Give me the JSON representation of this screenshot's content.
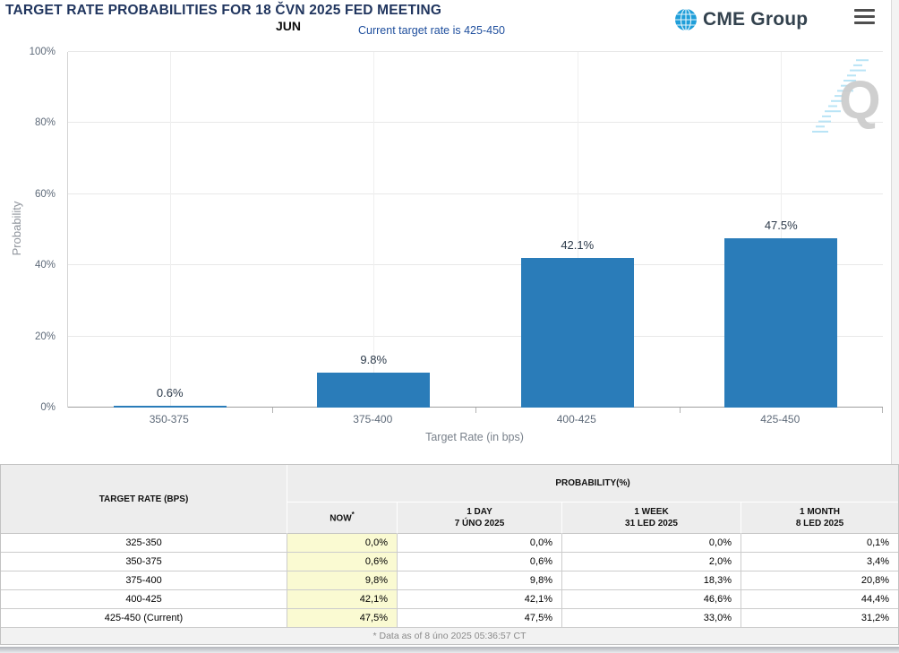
{
  "header": {
    "title": "TARGET RATE PROBABILITIES FOR 18 ČVN 2025 FED MEETING",
    "month_label": "JUN",
    "subtitle": "Current target rate is 425-450",
    "logo_text": "CME Group",
    "watermark_letter": "Q"
  },
  "chart_data": {
    "type": "bar",
    "title": "TARGET RATE PROBABILITIES FOR 18 ČVN 2025 FED MEETING",
    "subtitle": "Current target rate is 425-450",
    "categories": [
      "350-375",
      "375-400",
      "400-425",
      "425-450"
    ],
    "values": [
      0.6,
      9.8,
      42.1,
      47.5
    ],
    "value_labels": [
      "0.6%",
      "9.8%",
      "42.1%",
      "47.5%"
    ],
    "xlabel": "Target Rate (in bps)",
    "ylabel": "Probability",
    "ylim": [
      0,
      100
    ],
    "yticks": [
      "0%",
      "20%",
      "40%",
      "60%",
      "80%",
      "100%"
    ],
    "grid": true,
    "legend": false,
    "bar_color": "#2a7cb9"
  },
  "table": {
    "col1_header": "TARGET RATE (BPS)",
    "group_header": "PROBABILITY(%)",
    "columns": [
      {
        "label": "NOW",
        "sup": "*",
        "sub": ""
      },
      {
        "label": "1 DAY",
        "sub": "7 ÚNO 2025"
      },
      {
        "label": "1 WEEK",
        "sub": "31 LED 2025"
      },
      {
        "label": "1 MONTH",
        "sub": "8 LED 2025"
      }
    ],
    "rows": [
      {
        "rate": "325-350",
        "now": "0,0%",
        "day": "0,0%",
        "week": "0,0%",
        "month": "0,1%"
      },
      {
        "rate": "350-375",
        "now": "0,6%",
        "day": "0,6%",
        "week": "2,0%",
        "month": "3,4%"
      },
      {
        "rate": "375-400",
        "now": "9,8%",
        "day": "9,8%",
        "week": "18,3%",
        "month": "20,8%"
      },
      {
        "rate": "400-425",
        "now": "42,1%",
        "day": "42,1%",
        "week": "46,6%",
        "month": "44,4%"
      },
      {
        "rate": "425-450 (Current)",
        "now": "47,5%",
        "day": "47,5%",
        "week": "33,0%",
        "month": "31,2%"
      }
    ],
    "footnote": "* Data as of 8 úno 2025 05:36:57 CT"
  },
  "colors": {
    "bar": "#2a7cb9",
    "now_column_bg": "#fafad2",
    "title_navy": "#20355e",
    "subtitle_blue": "#1e4e9d",
    "logo_blue": "#1f9ed9"
  }
}
